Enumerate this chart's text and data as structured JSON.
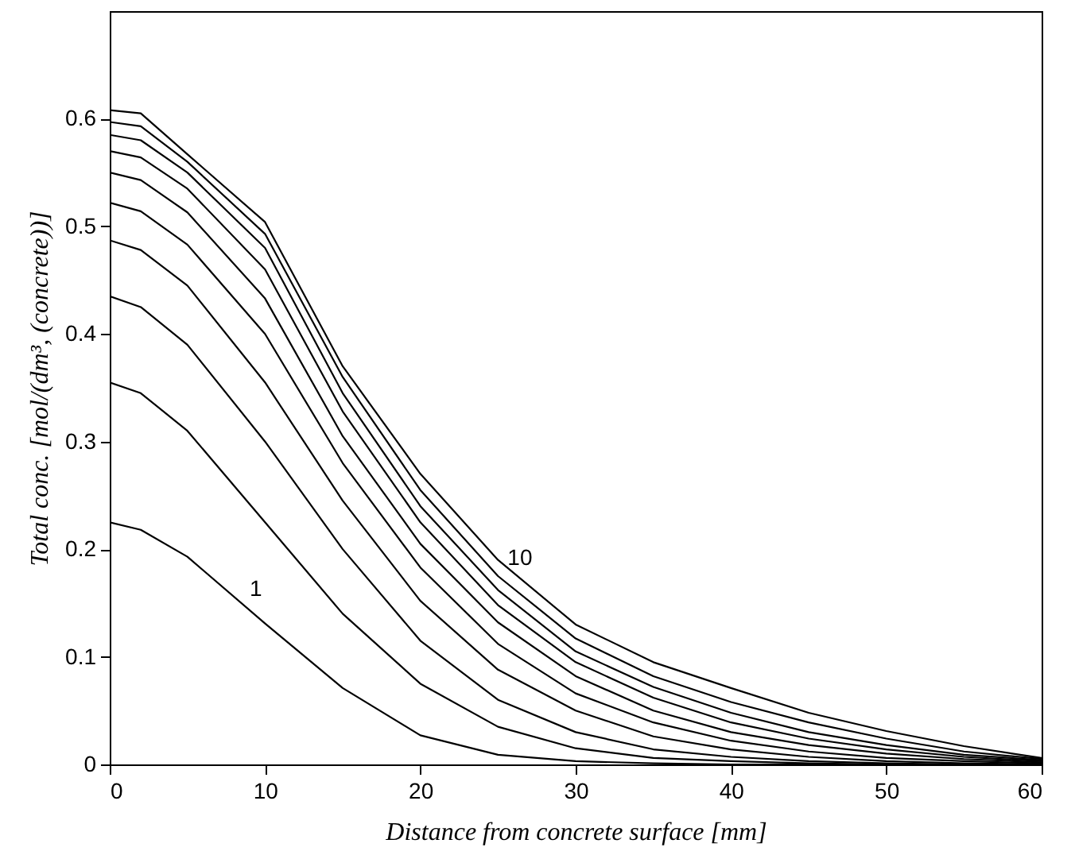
{
  "chart_data": {
    "type": "line",
    "xlabel": "Distance from concrete surface [mm]",
    "ylabel": "Total conc. [mol/(dm³, (concrete))]",
    "x": [
      0,
      2,
      5,
      10,
      15,
      20,
      25,
      30,
      35,
      40,
      45,
      50,
      55,
      60
    ],
    "xlim": [
      0,
      60
    ],
    "xticks": [
      0,
      10,
      20,
      30,
      40,
      50,
      60
    ],
    "ylim": [
      0,
      0.7
    ],
    "yticks": [
      0,
      0.1,
      0.2,
      0.3,
      0.4,
      0.5,
      0.6
    ],
    "series": [
      {
        "color": "#000000",
        "values": [
          0.225,
          0.218,
          0.193,
          0.131,
          0.071,
          0.027,
          0.009,
          0.003,
          0.001,
          0,
          0,
          0,
          0,
          0
        ]
      },
      {
        "color": "#000000",
        "values": [
          0.355,
          0.345,
          0.31,
          0.225,
          0.14,
          0.075,
          0.035,
          0.015,
          0.006,
          0.003,
          0.001,
          0,
          0,
          0
        ]
      },
      {
        "color": "#000000",
        "values": [
          0.435,
          0.425,
          0.39,
          0.3,
          0.2,
          0.115,
          0.06,
          0.03,
          0.014,
          0.007,
          0.003,
          0.001,
          0,
          0
        ]
      },
      {
        "color": "#000000",
        "values": [
          0.487,
          0.478,
          0.445,
          0.355,
          0.245,
          0.152,
          0.088,
          0.05,
          0.026,
          0.014,
          0.007,
          0.003,
          0.001,
          0
        ]
      },
      {
        "color": "#000000",
        "values": [
          0.522,
          0.514,
          0.483,
          0.4,
          0.28,
          0.183,
          0.112,
          0.066,
          0.039,
          0.022,
          0.012,
          0.006,
          0.003,
          0.001
        ]
      },
      {
        "color": "#000000",
        "values": [
          0.55,
          0.543,
          0.513,
          0.433,
          0.305,
          0.205,
          0.132,
          0.082,
          0.05,
          0.03,
          0.018,
          0.01,
          0.005,
          0.002
        ]
      },
      {
        "color": "#000000",
        "values": [
          0.57,
          0.564,
          0.535,
          0.46,
          0.328,
          0.225,
          0.148,
          0.095,
          0.062,
          0.039,
          0.024,
          0.014,
          0.007,
          0.003
        ]
      },
      {
        "color": "#000000",
        "values": [
          0.585,
          0.58,
          0.55,
          0.48,
          0.345,
          0.24,
          0.162,
          0.105,
          0.072,
          0.048,
          0.03,
          0.018,
          0.009,
          0.004
        ]
      },
      {
        "color": "#000000",
        "values": [
          0.597,
          0.593,
          0.56,
          0.493,
          0.36,
          0.255,
          0.175,
          0.117,
          0.082,
          0.058,
          0.039,
          0.024,
          0.012,
          0.005
        ]
      },
      {
        "color": "#000000",
        "values": [
          0.608,
          0.605,
          0.567,
          0.504,
          0.37,
          0.27,
          0.19,
          0.13,
          0.095,
          0.071,
          0.048,
          0.031,
          0.017,
          0.006
        ]
      }
    ],
    "annotations": [
      {
        "text": "1",
        "x": 9,
        "y": 0.143
      },
      {
        "text": "10",
        "x": 26,
        "y": 0.172
      }
    ]
  }
}
